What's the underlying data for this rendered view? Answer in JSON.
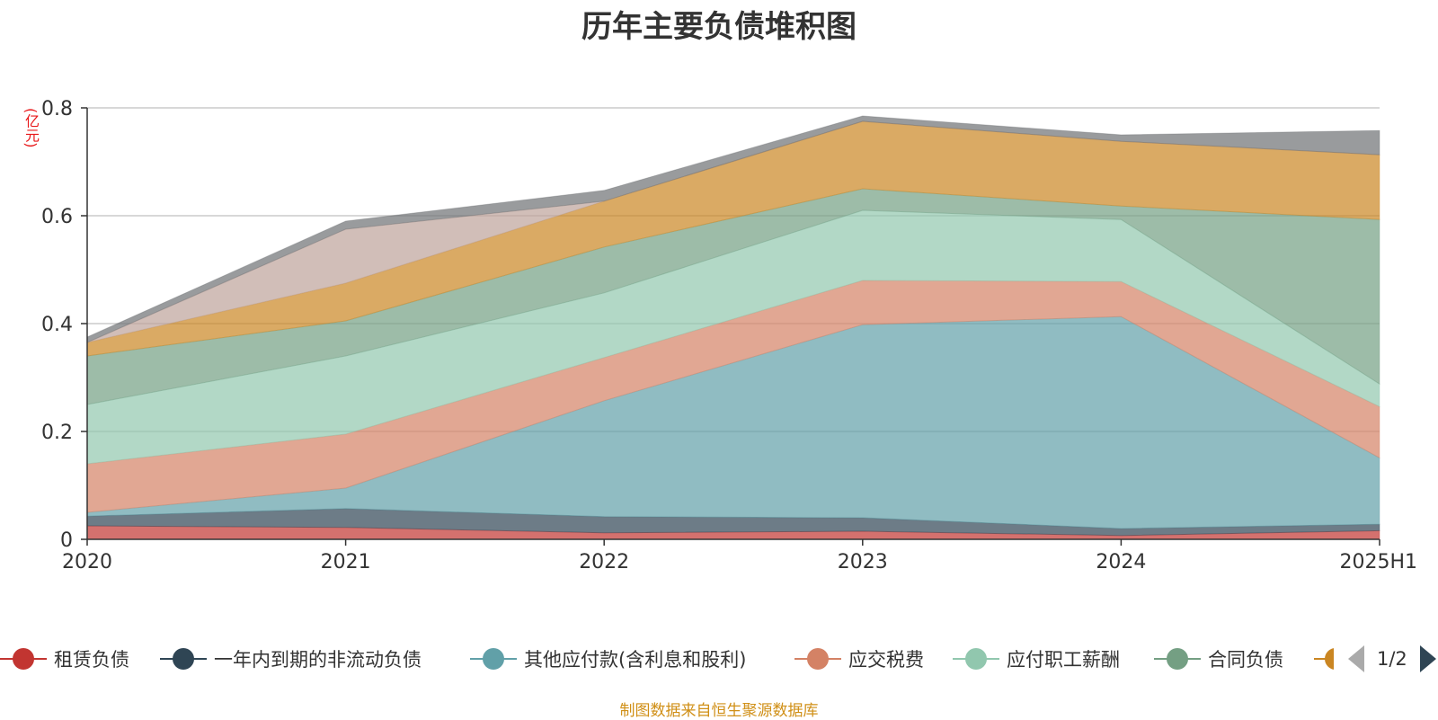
{
  "chart_data": {
    "type": "area",
    "stacked": true,
    "title": "历年主要负债堆积图",
    "ylabel": "(亿元)",
    "ylim": [
      0,
      0.8
    ],
    "yticks": [
      "0",
      "0.2",
      "0.4",
      "0.6",
      "0.8"
    ],
    "categories": [
      "2020",
      "2021",
      "2022",
      "2023",
      "2024",
      "2025H1"
    ],
    "grid": true,
    "legend_position": "bottom",
    "series": [
      {
        "name": "租赁负债",
        "color": "#c23531",
        "values": [
          0.025,
          0.022,
          0.012,
          0.015,
          0.007,
          0.016
        ]
      },
      {
        "name": "一年内到期的非流动负债",
        "color": "#2f4554",
        "values": [
          0.018,
          0.035,
          0.03,
          0.025,
          0.013,
          0.012
        ]
      },
      {
        "name": "其他应付款(含利息和股利)",
        "color": "#61a0a8",
        "values": [
          0.007,
          0.038,
          0.215,
          0.358,
          0.393,
          0.123
        ]
      },
      {
        "name": "应交税费",
        "color": "#d48265",
        "values": [
          0.09,
          0.1,
          0.08,
          0.082,
          0.065,
          0.095
        ]
      },
      {
        "name": "应付职工薪酬",
        "color": "#91c7ae",
        "values": [
          0.11,
          0.145,
          0.12,
          0.13,
          0.115,
          0.042
        ]
      },
      {
        "name": "合同负债",
        "color": "#749f83",
        "values": [
          0.09,
          0.065,
          0.085,
          0.04,
          0.025,
          0.305
        ]
      },
      {
        "name": "",
        "color": "#ca8622",
        "values": [
          0.025,
          0.07,
          0.085,
          0.125,
          0.12,
          0.12
        ]
      },
      {
        "name": "",
        "color": "#bda29a",
        "values": [
          0.0,
          0.1,
          0.0,
          0.0,
          0.0,
          0.0
        ]
      },
      {
        "name": "",
        "color": "#6e7074",
        "values": [
          0.01,
          0.015,
          0.02,
          0.01,
          0.012,
          0.045
        ]
      }
    ]
  },
  "legend": {
    "page": "1/2",
    "partial_color": "#ca8622"
  },
  "source": "制图数据来自恒生聚源数据库"
}
